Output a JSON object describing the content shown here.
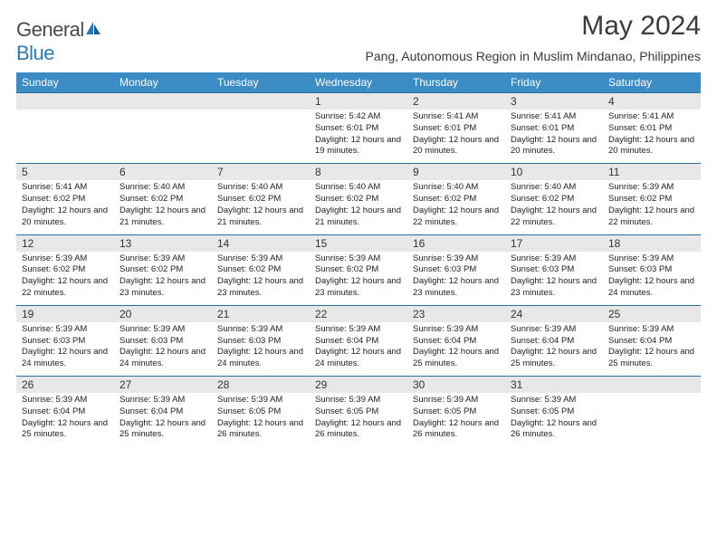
{
  "brand": {
    "name_left": "General",
    "name_right": "Blue",
    "color_blue": "#2a7ab8",
    "color_gray": "#4a4a4a"
  },
  "title": "May 2024",
  "location": "Pang, Autonomous Region in Muslim Mindanao, Philippines",
  "day_headers": [
    "Sunday",
    "Monday",
    "Tuesday",
    "Wednesday",
    "Thursday",
    "Friday",
    "Saturday"
  ],
  "header_bg": "#3b8bc4",
  "date_bg": "#e8e8e8",
  "border_color": "#2a6da0",
  "weeks": [
    [
      {
        "date": "",
        "sunrise": "",
        "sunset": "",
        "daylight": ""
      },
      {
        "date": "",
        "sunrise": "",
        "sunset": "",
        "daylight": ""
      },
      {
        "date": "",
        "sunrise": "",
        "sunset": "",
        "daylight": ""
      },
      {
        "date": "1",
        "sunrise": "Sunrise: 5:42 AM",
        "sunset": "Sunset: 6:01 PM",
        "daylight": "Daylight: 12 hours and 19 minutes."
      },
      {
        "date": "2",
        "sunrise": "Sunrise: 5:41 AM",
        "sunset": "Sunset: 6:01 PM",
        "daylight": "Daylight: 12 hours and 20 minutes."
      },
      {
        "date": "3",
        "sunrise": "Sunrise: 5:41 AM",
        "sunset": "Sunset: 6:01 PM",
        "daylight": "Daylight: 12 hours and 20 minutes."
      },
      {
        "date": "4",
        "sunrise": "Sunrise: 5:41 AM",
        "sunset": "Sunset: 6:01 PM",
        "daylight": "Daylight: 12 hours and 20 minutes."
      }
    ],
    [
      {
        "date": "5",
        "sunrise": "Sunrise: 5:41 AM",
        "sunset": "Sunset: 6:02 PM",
        "daylight": "Daylight: 12 hours and 20 minutes."
      },
      {
        "date": "6",
        "sunrise": "Sunrise: 5:40 AM",
        "sunset": "Sunset: 6:02 PM",
        "daylight": "Daylight: 12 hours and 21 minutes."
      },
      {
        "date": "7",
        "sunrise": "Sunrise: 5:40 AM",
        "sunset": "Sunset: 6:02 PM",
        "daylight": "Daylight: 12 hours and 21 minutes."
      },
      {
        "date": "8",
        "sunrise": "Sunrise: 5:40 AM",
        "sunset": "Sunset: 6:02 PM",
        "daylight": "Daylight: 12 hours and 21 minutes."
      },
      {
        "date": "9",
        "sunrise": "Sunrise: 5:40 AM",
        "sunset": "Sunset: 6:02 PM",
        "daylight": "Daylight: 12 hours and 22 minutes."
      },
      {
        "date": "10",
        "sunrise": "Sunrise: 5:40 AM",
        "sunset": "Sunset: 6:02 PM",
        "daylight": "Daylight: 12 hours and 22 minutes."
      },
      {
        "date": "11",
        "sunrise": "Sunrise: 5:39 AM",
        "sunset": "Sunset: 6:02 PM",
        "daylight": "Daylight: 12 hours and 22 minutes."
      }
    ],
    [
      {
        "date": "12",
        "sunrise": "Sunrise: 5:39 AM",
        "sunset": "Sunset: 6:02 PM",
        "daylight": "Daylight: 12 hours and 22 minutes."
      },
      {
        "date": "13",
        "sunrise": "Sunrise: 5:39 AM",
        "sunset": "Sunset: 6:02 PM",
        "daylight": "Daylight: 12 hours and 23 minutes."
      },
      {
        "date": "14",
        "sunrise": "Sunrise: 5:39 AM",
        "sunset": "Sunset: 6:02 PM",
        "daylight": "Daylight: 12 hours and 23 minutes."
      },
      {
        "date": "15",
        "sunrise": "Sunrise: 5:39 AM",
        "sunset": "Sunset: 6:02 PM",
        "daylight": "Daylight: 12 hours and 23 minutes."
      },
      {
        "date": "16",
        "sunrise": "Sunrise: 5:39 AM",
        "sunset": "Sunset: 6:03 PM",
        "daylight": "Daylight: 12 hours and 23 minutes."
      },
      {
        "date": "17",
        "sunrise": "Sunrise: 5:39 AM",
        "sunset": "Sunset: 6:03 PM",
        "daylight": "Daylight: 12 hours and 23 minutes."
      },
      {
        "date": "18",
        "sunrise": "Sunrise: 5:39 AM",
        "sunset": "Sunset: 6:03 PM",
        "daylight": "Daylight: 12 hours and 24 minutes."
      }
    ],
    [
      {
        "date": "19",
        "sunrise": "Sunrise: 5:39 AM",
        "sunset": "Sunset: 6:03 PM",
        "daylight": "Daylight: 12 hours and 24 minutes."
      },
      {
        "date": "20",
        "sunrise": "Sunrise: 5:39 AM",
        "sunset": "Sunset: 6:03 PM",
        "daylight": "Daylight: 12 hours and 24 minutes."
      },
      {
        "date": "21",
        "sunrise": "Sunrise: 5:39 AM",
        "sunset": "Sunset: 6:03 PM",
        "daylight": "Daylight: 12 hours and 24 minutes."
      },
      {
        "date": "22",
        "sunrise": "Sunrise: 5:39 AM",
        "sunset": "Sunset: 6:04 PM",
        "daylight": "Daylight: 12 hours and 24 minutes."
      },
      {
        "date": "23",
        "sunrise": "Sunrise: 5:39 AM",
        "sunset": "Sunset: 6:04 PM",
        "daylight": "Daylight: 12 hours and 25 minutes."
      },
      {
        "date": "24",
        "sunrise": "Sunrise: 5:39 AM",
        "sunset": "Sunset: 6:04 PM",
        "daylight": "Daylight: 12 hours and 25 minutes."
      },
      {
        "date": "25",
        "sunrise": "Sunrise: 5:39 AM",
        "sunset": "Sunset: 6:04 PM",
        "daylight": "Daylight: 12 hours and 25 minutes."
      }
    ],
    [
      {
        "date": "26",
        "sunrise": "Sunrise: 5:39 AM",
        "sunset": "Sunset: 6:04 PM",
        "daylight": "Daylight: 12 hours and 25 minutes."
      },
      {
        "date": "27",
        "sunrise": "Sunrise: 5:39 AM",
        "sunset": "Sunset: 6:04 PM",
        "daylight": "Daylight: 12 hours and 25 minutes."
      },
      {
        "date": "28",
        "sunrise": "Sunrise: 5:39 AM",
        "sunset": "Sunset: 6:05 PM",
        "daylight": "Daylight: 12 hours and 26 minutes."
      },
      {
        "date": "29",
        "sunrise": "Sunrise: 5:39 AM",
        "sunset": "Sunset: 6:05 PM",
        "daylight": "Daylight: 12 hours and 26 minutes."
      },
      {
        "date": "30",
        "sunrise": "Sunrise: 5:39 AM",
        "sunset": "Sunset: 6:05 PM",
        "daylight": "Daylight: 12 hours and 26 minutes."
      },
      {
        "date": "31",
        "sunrise": "Sunrise: 5:39 AM",
        "sunset": "Sunset: 6:05 PM",
        "daylight": "Daylight: 12 hours and 26 minutes."
      },
      {
        "date": "",
        "sunrise": "",
        "sunset": "",
        "daylight": ""
      }
    ]
  ]
}
